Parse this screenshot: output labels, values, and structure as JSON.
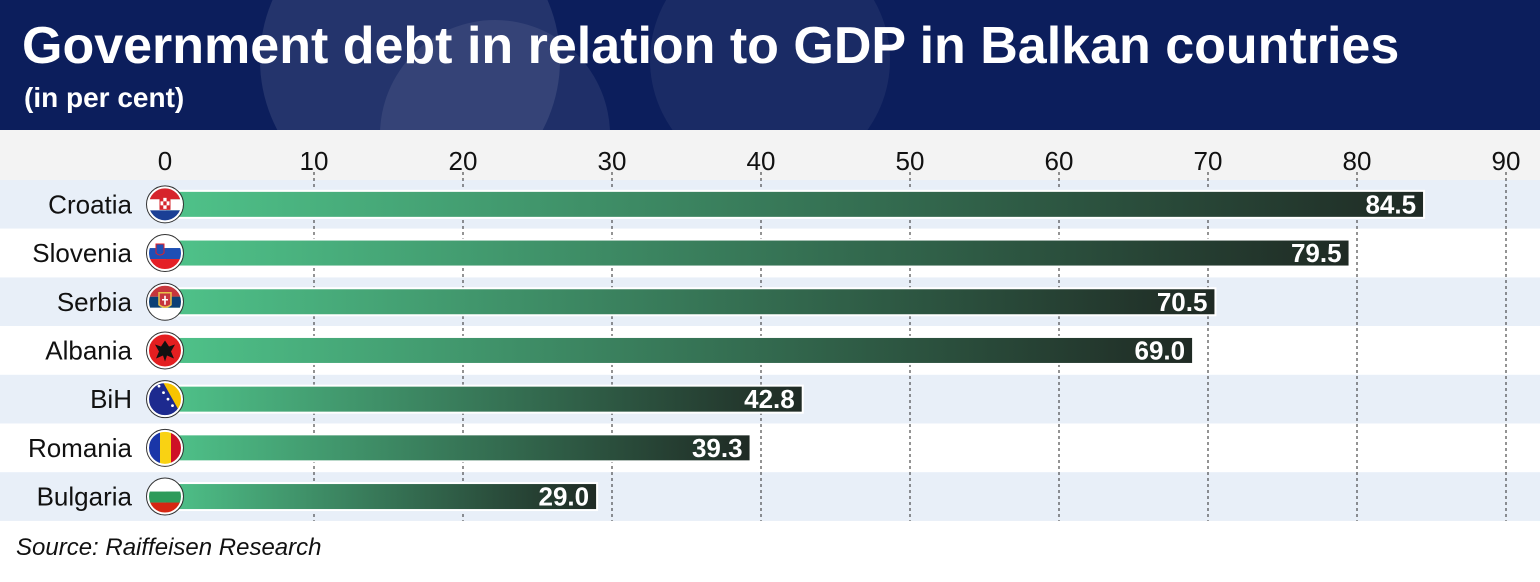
{
  "header": {
    "title": "Government debt in relation to GDP in Balkan countries",
    "subtitle": "(in per cent)"
  },
  "source": "Source: Raiffeisen Research",
  "colors": {
    "header_bg": "#0c1e5c",
    "band_light": "#e8eff8",
    "bar_start": "#4fc38a",
    "bar_end": "#1f2a24"
  },
  "chart_data": {
    "type": "bar",
    "orientation": "horizontal",
    "title": "Government debt in relation to GDP in Balkan countries",
    "subtitle": "(in per cent)",
    "categories": [
      "Croatia",
      "Slovenia",
      "Serbia",
      "Albania",
      "BiH",
      "Romania",
      "Bulgaria"
    ],
    "values": [
      84.5,
      79.5,
      70.5,
      69.0,
      42.8,
      39.3,
      29.0
    ],
    "value_labels": [
      "84.5",
      "79.5",
      "70.5",
      "69.0",
      "42.8",
      "39.3",
      "29.0"
    ],
    "flags": [
      "croatia-flag",
      "slovenia-flag",
      "serbia-flag",
      "albania-flag",
      "bih-flag",
      "romania-flag",
      "bulgaria-flag"
    ],
    "xlim": [
      0,
      90
    ],
    "xticks": [
      0,
      10,
      20,
      30,
      40,
      50,
      60,
      70,
      80,
      90
    ],
    "xtick_labels": [
      "0",
      "10",
      "20",
      "30",
      "40",
      "50",
      "60",
      "70",
      "80",
      "90"
    ],
    "axis_position": "top",
    "grid": true,
    "legend": "none",
    "xlabel": "",
    "ylabel": ""
  }
}
